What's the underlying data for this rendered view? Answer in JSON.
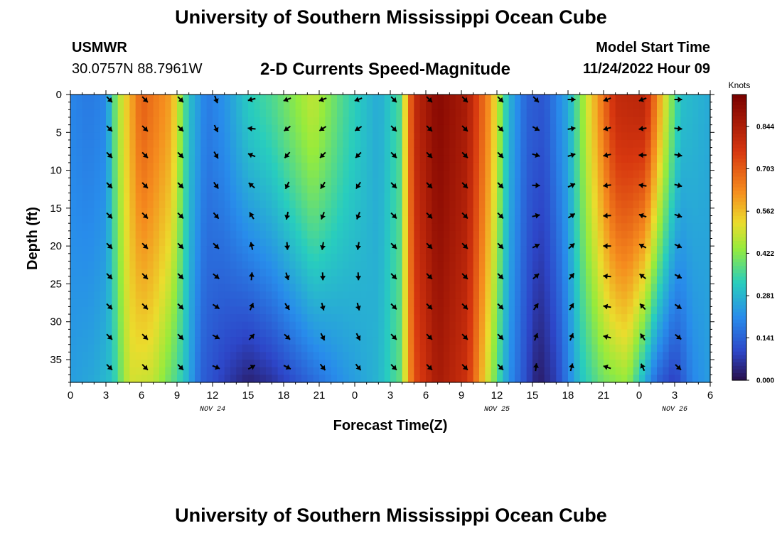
{
  "header": {
    "title": "University of Southern Mississippi Ocean Cube",
    "station": "USMWR",
    "coords": "30.0757N  88.7961W",
    "subtitle": "2-D Currents Speed-Magnitude",
    "model_label": "Model Start Time",
    "model_time": "11/24/2022 Hour 09"
  },
  "footer": {
    "title": "University of Southern Mississippi Ocean Cube"
  },
  "chart_data": {
    "type": "heatmap",
    "title": "2-D Currents Speed-Magnitude",
    "xlabel": "Forecast Time(Z)",
    "ylabel": "Depth (ft)",
    "x_hours_range": [
      0,
      54
    ],
    "xlim_hours": [
      0,
      54
    ],
    "ylim_ft": [
      0,
      38
    ],
    "x_ticks": [
      {
        "hour": 0,
        "label": "0"
      },
      {
        "hour": 3,
        "label": "3"
      },
      {
        "hour": 6,
        "label": "6"
      },
      {
        "hour": 9,
        "label": "9"
      },
      {
        "hour": 12,
        "label": "12"
      },
      {
        "hour": 15,
        "label": "15"
      },
      {
        "hour": 18,
        "label": "18"
      },
      {
        "hour": 21,
        "label": "21"
      },
      {
        "hour": 24,
        "label": "0"
      },
      {
        "hour": 27,
        "label": "3"
      },
      {
        "hour": 30,
        "label": "6"
      },
      {
        "hour": 33,
        "label": "9"
      },
      {
        "hour": 36,
        "label": "12"
      },
      {
        "hour": 39,
        "label": "15"
      },
      {
        "hour": 42,
        "label": "18"
      },
      {
        "hour": 45,
        "label": "21"
      },
      {
        "hour": 48,
        "label": "0"
      },
      {
        "hour": 51,
        "label": "3"
      },
      {
        "hour": 54,
        "label": "6"
      }
    ],
    "date_labels": [
      {
        "hour": 12,
        "label": "NOV 24"
      },
      {
        "hour": 36,
        "label": "NOV 25"
      },
      {
        "hour": 51,
        "label": "NOV 26"
      }
    ],
    "y_ticks": [
      0,
      5,
      10,
      15,
      20,
      25,
      30,
      35
    ],
    "colorbar": {
      "label": "Knots",
      "min": 0.0,
      "max": 0.95,
      "ticks": [
        "0.844",
        "0.703",
        "0.562",
        "0.422",
        "0.281",
        "0.141",
        "0.000"
      ],
      "tick_values": [
        0.844,
        0.703,
        0.562,
        0.422,
        0.281,
        0.141,
        0.0
      ]
    },
    "speed_profile_surface": [
      {
        "hour": 0,
        "speed": 0.2
      },
      {
        "hour": 1.5,
        "speed": 0.18
      },
      {
        "hour": 3,
        "speed": 0.2
      },
      {
        "hour": 4,
        "speed": 0.45
      },
      {
        "hour": 6,
        "speed": 0.7
      },
      {
        "hour": 8.5,
        "speed": 0.6
      },
      {
        "hour": 10,
        "speed": 0.3
      },
      {
        "hour": 11.5,
        "speed": 0.18
      },
      {
        "hour": 13,
        "speed": 0.22
      },
      {
        "hour": 15,
        "speed": 0.32
      },
      {
        "hour": 17,
        "speed": 0.36
      },
      {
        "hour": 20.5,
        "speed": 0.48
      },
      {
        "hour": 23,
        "speed": 0.36
      },
      {
        "hour": 26,
        "speed": 0.26
      },
      {
        "hour": 27.8,
        "speed": 0.36
      },
      {
        "hour": 29,
        "speed": 0.8
      },
      {
        "hour": 31,
        "speed": 0.92
      },
      {
        "hour": 33.5,
        "speed": 0.85
      },
      {
        "hour": 35.5,
        "speed": 0.6
      },
      {
        "hour": 37,
        "speed": 0.28
      },
      {
        "hour": 38.5,
        "speed": 0.14
      },
      {
        "hour": 40,
        "speed": 0.12
      },
      {
        "hour": 42,
        "speed": 0.26
      },
      {
        "hour": 43.5,
        "speed": 0.48
      },
      {
        "hour": 46,
        "speed": 0.8
      },
      {
        "hour": 48.5,
        "speed": 0.82
      },
      {
        "hour": 50.5,
        "speed": 0.45
      },
      {
        "hour": 51.5,
        "speed": 0.3
      },
      {
        "hour": 54,
        "speed": 0.26
      }
    ],
    "speed_profile_bottom": [
      {
        "hour": 0,
        "speed": 0.24
      },
      {
        "hour": 2,
        "speed": 0.26
      },
      {
        "hour": 3.5,
        "speed": 0.3
      },
      {
        "hour": 5,
        "speed": 0.5
      },
      {
        "hour": 7,
        "speed": 0.48
      },
      {
        "hour": 9.5,
        "speed": 0.32
      },
      {
        "hour": 11,
        "speed": 0.14
      },
      {
        "hour": 13,
        "speed": 0.08
      },
      {
        "hour": 15,
        "speed": 0.03
      },
      {
        "hour": 17,
        "speed": 0.06
      },
      {
        "hour": 20,
        "speed": 0.14
      },
      {
        "hour": 23,
        "speed": 0.22
      },
      {
        "hour": 26,
        "speed": 0.28
      },
      {
        "hour": 27.8,
        "speed": 0.38
      },
      {
        "hour": 29,
        "speed": 0.72
      },
      {
        "hour": 31,
        "speed": 0.86
      },
      {
        "hour": 33.5,
        "speed": 0.78
      },
      {
        "hour": 35.5,
        "speed": 0.45
      },
      {
        "hour": 37,
        "speed": 0.22
      },
      {
        "hour": 38.5,
        "speed": 0.1
      },
      {
        "hour": 39.5,
        "speed": 0.02
      },
      {
        "hour": 41,
        "speed": 0.08
      },
      {
        "hour": 43,
        "speed": 0.3
      },
      {
        "hour": 45,
        "speed": 0.4
      },
      {
        "hour": 47,
        "speed": 0.44
      },
      {
        "hour": 49.5,
        "speed": 0.14
      },
      {
        "hour": 51,
        "speed": 0.08
      },
      {
        "hour": 52.5,
        "speed": 0.2
      },
      {
        "hour": 54,
        "speed": 0.24
      }
    ],
    "arrow_hours": [
      3.3,
      6.3,
      9.3,
      12.3,
      15.3,
      18.3,
      21.3,
      24.3,
      27.3,
      30.3,
      33.3,
      36.3,
      39.3,
      42.3,
      45.3,
      48.3,
      51.3
    ],
    "arrow_depths_ft": [
      0,
      4.5,
      8,
      12,
      16,
      20,
      24,
      28,
      32,
      36
    ],
    "arrow_direction_deg_surface": [
      45,
      45,
      45,
      70,
      165,
      160,
      160,
      160,
      45,
      45,
      45,
      45,
      45,
      0,
      160,
      160,
      0
    ],
    "arrow_direction_deg_bottom": [
      45,
      45,
      45,
      20,
      340,
      20,
      45,
      45,
      45,
      45,
      45,
      45,
      270,
      280,
      200,
      250,
      45
    ]
  }
}
